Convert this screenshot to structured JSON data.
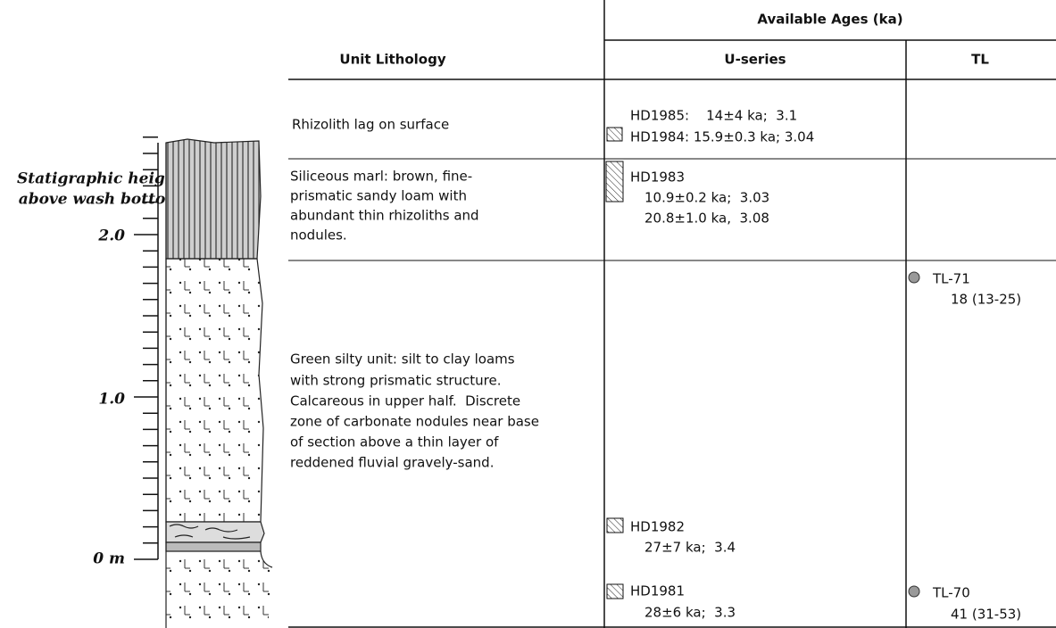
{
  "axis": {
    "title": [
      "Statigraphic height",
      "above wash bottom"
    ],
    "labels": [
      "2.0",
      "1.0",
      "0 m"
    ]
  },
  "table": {
    "group_header": "Available Ages (ka)",
    "headers": [
      "Unit Lithology",
      "U-series",
      "TL"
    ],
    "rows": [
      {
        "lithology": [
          "Rhizolith lag on surface"
        ],
        "u_series": [
          {
            "lines": [
              "HD1985:    14±4 ka;  3.1"
            ]
          },
          {
            "lines": [
              "HD1984: 15.9±0.3 ka; 3.04"
            ]
          }
        ],
        "tl": []
      },
      {
        "lithology": [
          "Siliceous marl: brown, fine-",
          "prismatic sandy loam with",
          "abundant thin rhizoliths and",
          "nodules."
        ],
        "u_series": [
          {
            "lines": [
              "HD1983",
              "10.9±0.2 ka;  3.03",
              "20.8±1.0 ka,  3.08"
            ]
          }
        ],
        "tl": []
      },
      {
        "lithology": [
          "Green silty unit: silt to clay loams",
          "with strong prismatic structure.",
          "Calcareous in upper half.  Discrete",
          "zone of carbonate nodules near base",
          "of section above a thin layer of",
          "reddened fluvial gravely-sand."
        ],
        "u_series": [
          {
            "lines": [
              "HD1982",
              "27±7 ka;  3.4"
            ]
          },
          {
            "lines": [
              "HD1981",
              "28±6 ka;  3.3"
            ]
          }
        ],
        "tl": [
          {
            "lines": [
              "TL-71",
              "18 (13-25)"
            ]
          },
          {
            "lines": [
              "TL-70",
              "41 (31-53)"
            ]
          }
        ]
      }
    ]
  }
}
